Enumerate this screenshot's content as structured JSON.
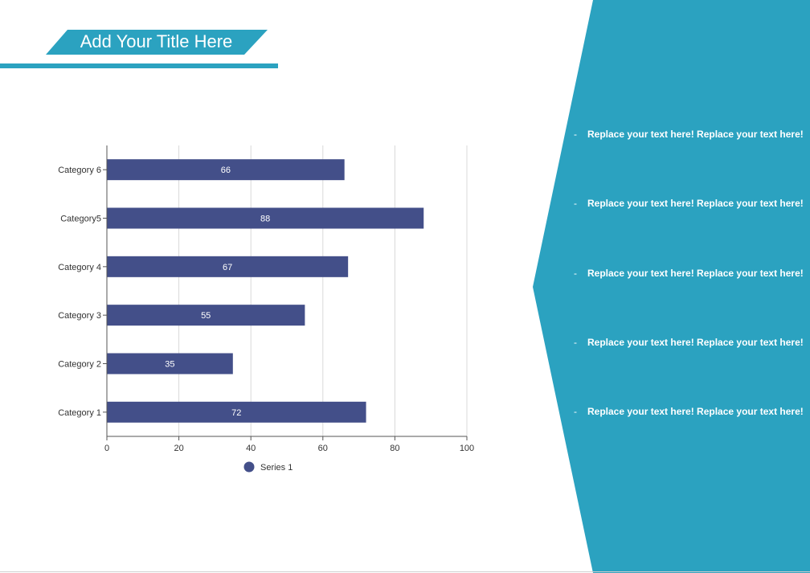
{
  "slide": {
    "title": "Add Your Title Here",
    "bullets": [
      "Replace your text here!  Replace your text here!",
      "Replace your text here!  Replace your text here!",
      "Replace your text here!  Replace your text here!",
      "Replace your text here!  Replace your text here!",
      "Replace your text here!  Replace your text here!"
    ],
    "bullet_marker": "-"
  },
  "colors": {
    "accent": "#2BA2C0",
    "bar": "#434F89",
    "grid": "#d9d9d9",
    "axis": "#555555",
    "text": "#333333"
  },
  "chart_data": {
    "type": "bar",
    "orientation": "horizontal",
    "categories": [
      "Category 1",
      "Category 2",
      "Category 3",
      "Category 4",
      "Category5",
      "Category 6"
    ],
    "series": [
      {
        "name": "Series 1",
        "values": [
          72,
          35,
          55,
          67,
          88,
          66
        ]
      }
    ],
    "xlim": [
      0,
      100
    ],
    "xticks": [
      0,
      20,
      40,
      60,
      80,
      100
    ],
    "grid": true,
    "data_labels": true,
    "legend": "bottom"
  }
}
